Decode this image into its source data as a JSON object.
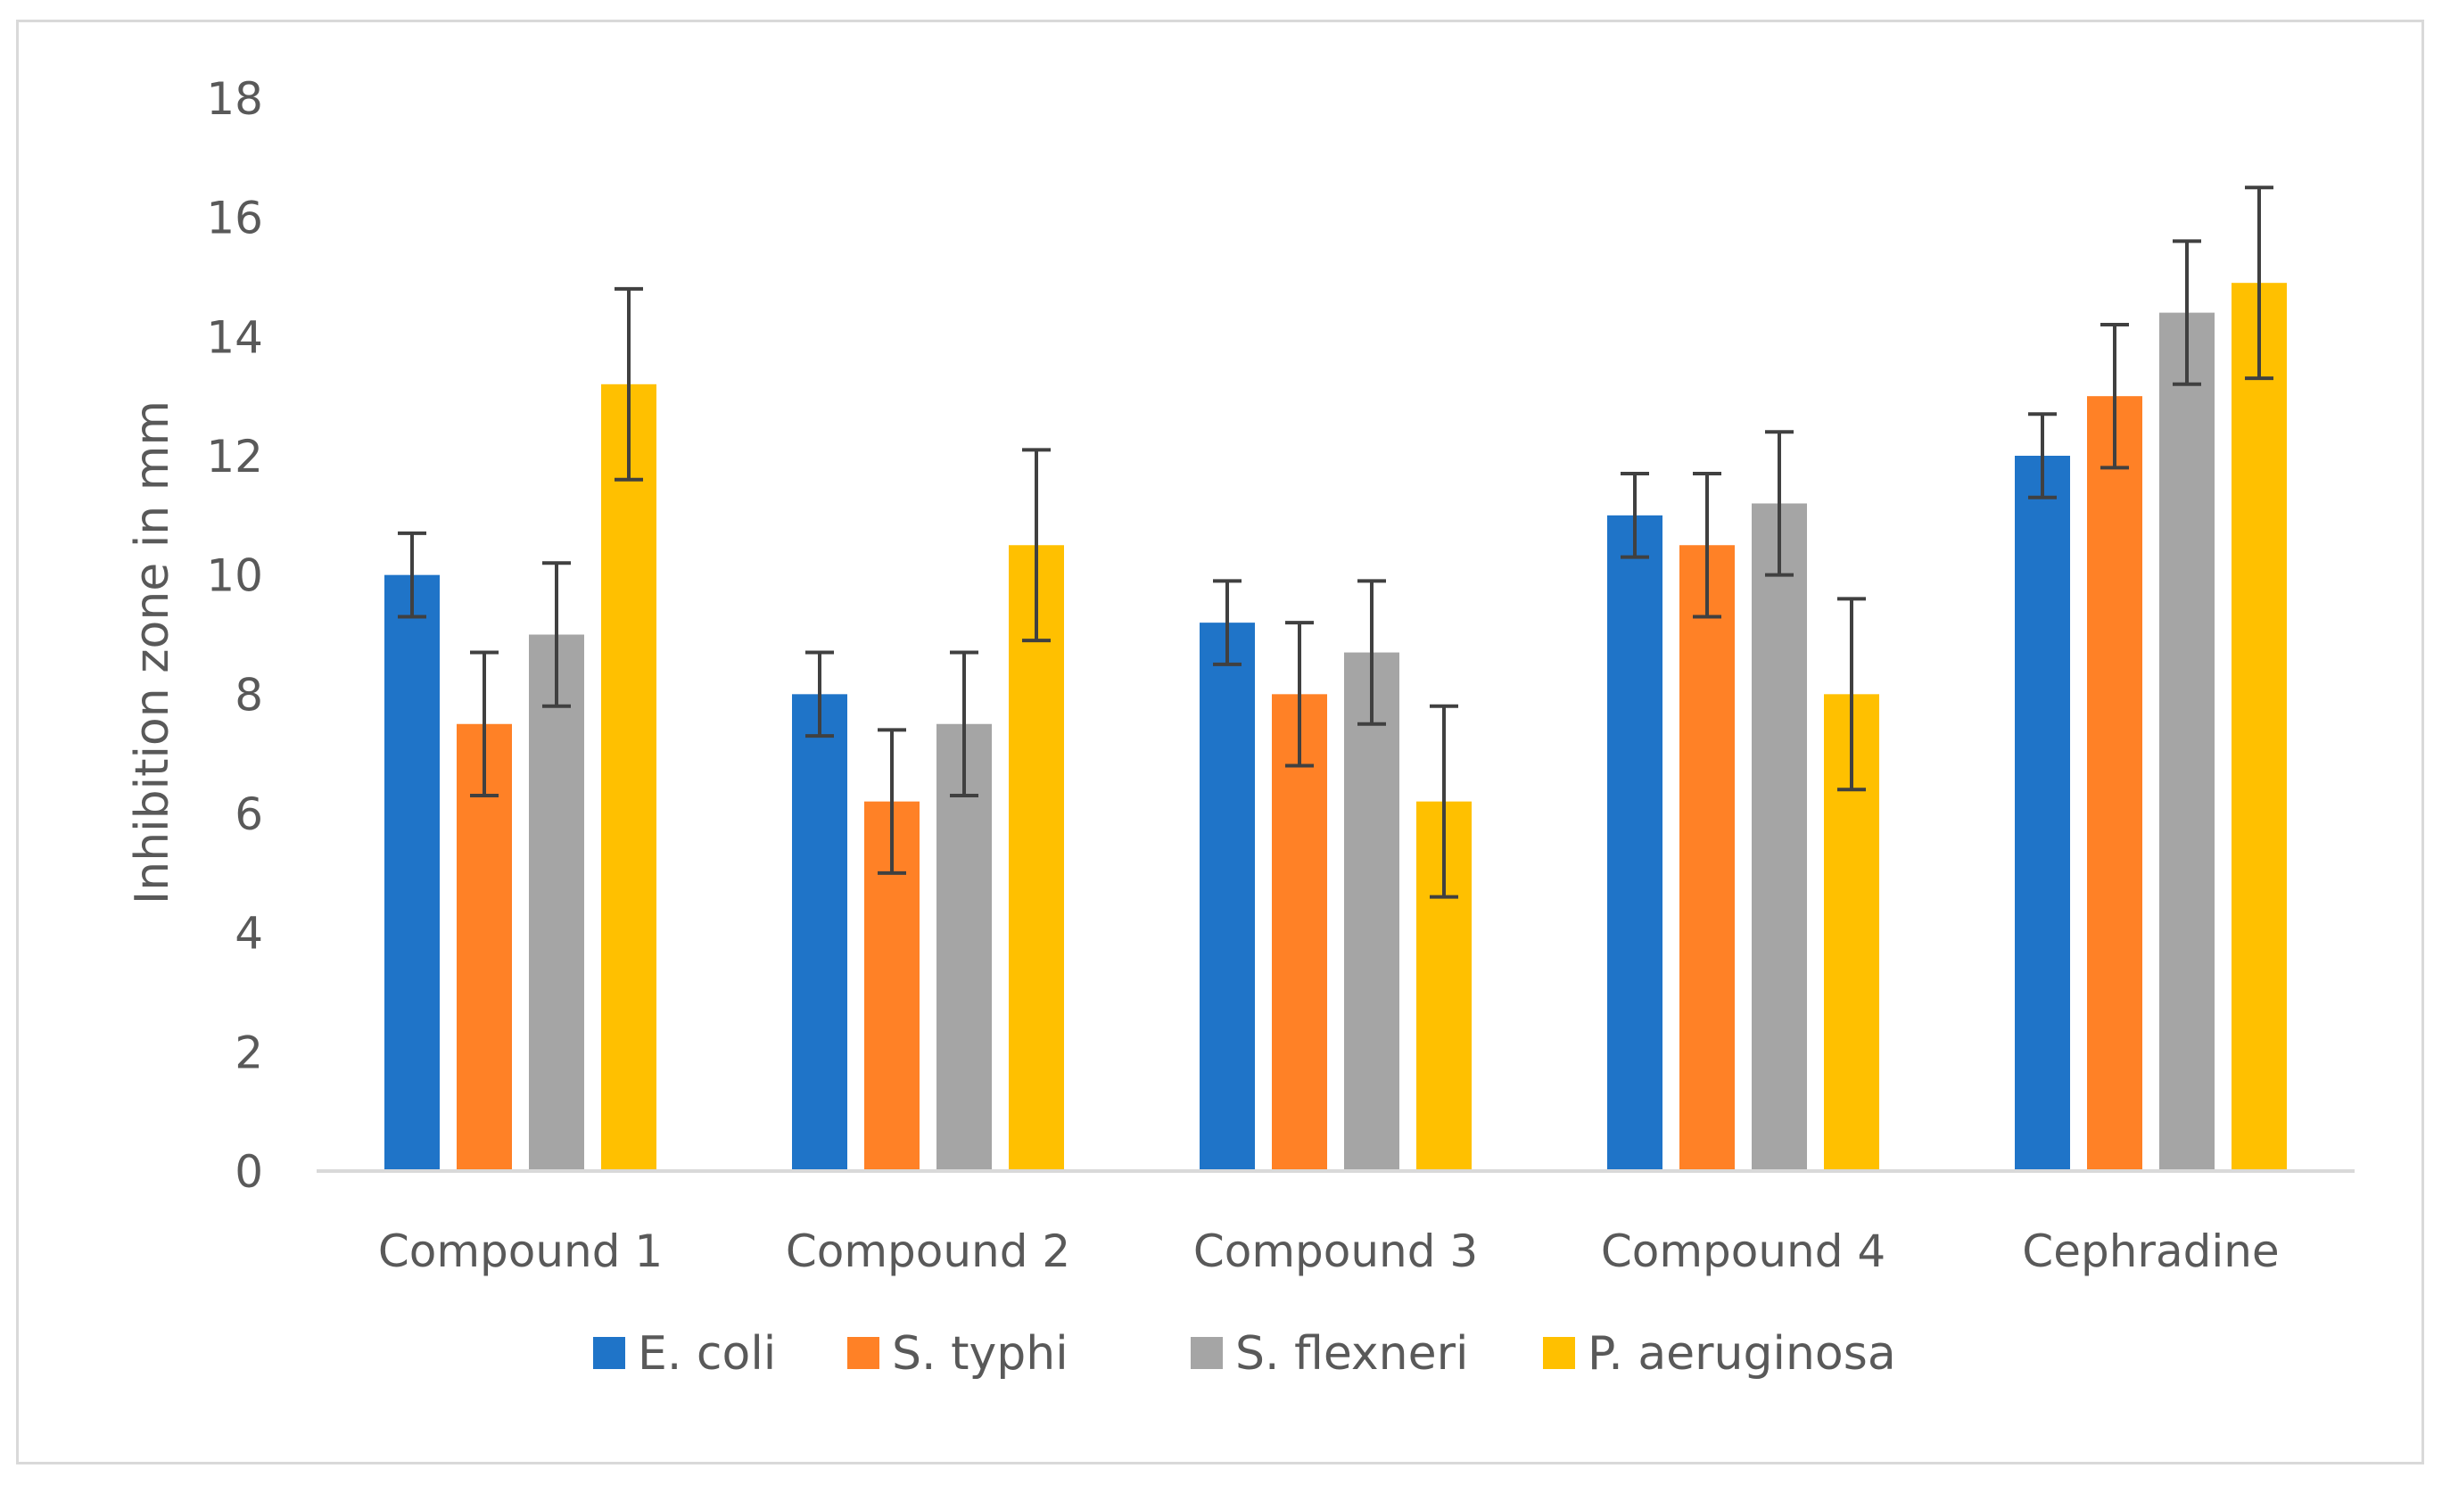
{
  "chart_data": {
    "type": "bar",
    "title": "",
    "xlabel": "",
    "ylabel": "Inhibition zone in mm",
    "ylim": [
      0,
      18
    ],
    "yticks": [
      "0",
      "2",
      "4",
      "6",
      "8",
      "10",
      "12",
      "14",
      "16",
      "18"
    ],
    "grid": false,
    "legend_position": "bottom",
    "categories": [
      "Compound 1",
      "Compound 2",
      "Compound 3",
      "Compound 4",
      "Cephradine"
    ],
    "series": [
      {
        "name": "E. coli",
        "color": "#1F74C8",
        "values": [
          10,
          8,
          9.2,
          11,
          12
        ],
        "errors": [
          0.7,
          0.7,
          0.7,
          0.7,
          0.7
        ]
      },
      {
        "name": "S. typhi",
        "color": "#FF8126",
        "values": [
          7.5,
          6.2,
          8,
          10.5,
          13
        ],
        "errors": [
          1.2,
          1.2,
          1.2,
          1.2,
          1.2
        ]
      },
      {
        "name": "S. flexneri",
        "color": "#A5A5A5",
        "values": [
          9,
          7.5,
          8.7,
          11.2,
          14.4
        ],
        "errors": [
          1.2,
          1.2,
          1.2,
          1.2,
          1.2
        ]
      },
      {
        "name": "P. aeruginosa",
        "color": "#FFC000",
        "values": [
          13.2,
          10.5,
          6.2,
          8,
          14.9
        ],
        "errors": [
          1.6,
          1.6,
          1.6,
          1.6,
          1.6
        ]
      }
    ]
  }
}
